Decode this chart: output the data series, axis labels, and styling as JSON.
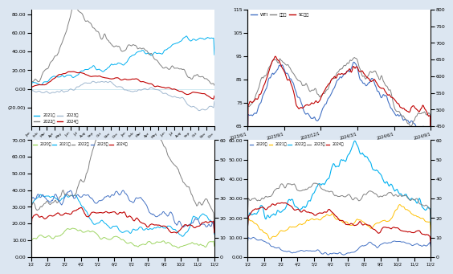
{
  "bg_color": "#1a6496",
  "panel_bg": "#ffffff",
  "top_left": {
    "ylim": [
      -40,
      85
    ],
    "yticks": [
      -20,
      0,
      20,
      40,
      60,
      80
    ],
    "yticklabels": [
      "(20.00)",
      "0.00",
      "20.00",
      "40.00",
      "60.00",
      "80.00"
    ],
    "legend": [
      "2021年",
      "2022年",
      "2023年",
      "2024年"
    ],
    "colors": [
      "#00b0f0",
      "#808080",
      "#a0b8d0",
      "#c00000"
    ],
    "xticklabels": [
      "Jan",
      "Jan",
      "Feb",
      "Feb",
      "Mar",
      "Apr",
      "Apr",
      "May",
      "May",
      "Jun",
      "Jun",
      "Jul",
      "Jul",
      "Aug",
      "Aug",
      "Sep",
      "Sep",
      "Oct",
      "Oct",
      "Nov",
      "Nov",
      "Dec",
      "Dec",
      "Dec"
    ]
  },
  "top_right": {
    "ylim_left": [
      65,
      115
    ],
    "ylim_right": [
      450,
      800
    ],
    "yticks_left": [
      65,
      75,
      85,
      95,
      105,
      115
    ],
    "yticks_right": [
      450,
      500,
      550,
      600,
      650,
      700,
      750,
      800
    ],
    "legend": [
      "WTI",
      "布伦特",
      "SC原油"
    ],
    "colors": [
      "#4472c4",
      "#808080",
      "#c00000"
    ],
    "xticklabels": [
      "2023/6/1",
      "2023/9/1",
      "2023/12/1",
      "2024/3/1",
      "2024/6/1",
      "2024/9/1"
    ]
  },
  "bottom_left": {
    "ylim": [
      0,
      70
    ],
    "yticks": [
      0,
      10,
      20,
      30,
      40,
      50,
      60,
      70
    ],
    "yticklabels": [
      "0.00",
      "10.00",
      "20.00",
      "30.00",
      "40.00",
      "50.00",
      "60.00",
      "70.00"
    ],
    "ylim_right": [
      0,
      60
    ],
    "yticks_right": [
      0,
      10,
      20,
      30,
      40,
      50,
      60
    ],
    "legend": [
      "2020年",
      "2021年",
      "2022年",
      "2023年",
      "2024年"
    ],
    "colors": [
      "#92d050",
      "#00b0f0",
      "#808080",
      "#4472c4",
      "#c00000"
    ],
    "xticklabels": [
      "1/2",
      "2/2",
      "3/2",
      "4/2",
      "5/2",
      "6/2",
      "7/2",
      "8/2",
      "9/2",
      "10/2",
      "11/2",
      "12/2"
    ]
  },
  "bottom_right": {
    "ylim": [
      0,
      60
    ],
    "yticks": [
      0,
      10,
      20,
      30,
      40,
      50,
      60
    ],
    "yticklabels": [
      "0.00",
      "10.00",
      "20.00",
      "30.00",
      "40.00",
      "50.00",
      "60.00"
    ],
    "ylim_right": [
      0,
      60
    ],
    "yticks_right": [
      0,
      10,
      20,
      30,
      40,
      50,
      60
    ],
    "legend": [
      "2020年",
      "2021年",
      "2022年",
      "2023年",
      "2024年"
    ],
    "colors": [
      "#4472c4",
      "#ffc000",
      "#00b0f0",
      "#808080",
      "#c00000"
    ],
    "xticklabels": [
      "1/2",
      "2/2",
      "3/2",
      "4/2",
      "5/2",
      "6/2",
      "7/2",
      "8/2",
      "9/2",
      "10/2",
      "11/2",
      "12/2"
    ]
  }
}
